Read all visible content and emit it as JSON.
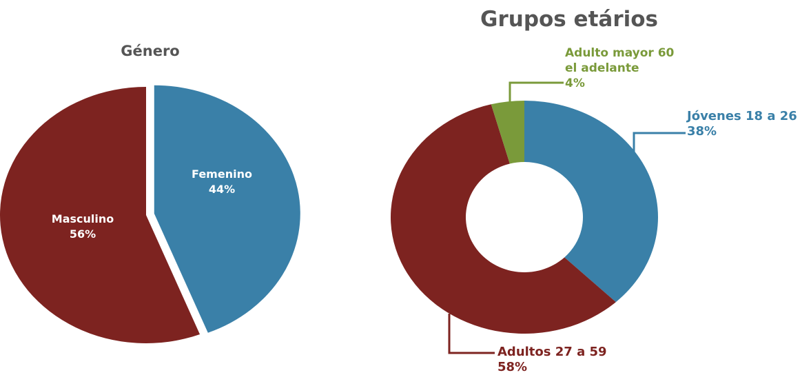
{
  "chart_data": [
    {
      "type": "pie",
      "title": "Género",
      "categories": [
        "Femenino",
        "Masculino"
      ],
      "values": [
        44,
        56
      ],
      "value_labels": [
        "44%",
        "56%"
      ],
      "colors": [
        "#3a80a8",
        "#7d2320"
      ]
    },
    {
      "type": "donut",
      "title": "Grupos etários",
      "categories": [
        "Jóvenes 18 a 26",
        "Adultos 27 a 59",
        "Adulto mayor 60 el adelante"
      ],
      "values": [
        38,
        58,
        4
      ],
      "value_labels": [
        "38%",
        "58%",
        "4%"
      ],
      "colors": [
        "#3a80a8",
        "#7d2320",
        "#7a9a3a"
      ]
    }
  ]
}
